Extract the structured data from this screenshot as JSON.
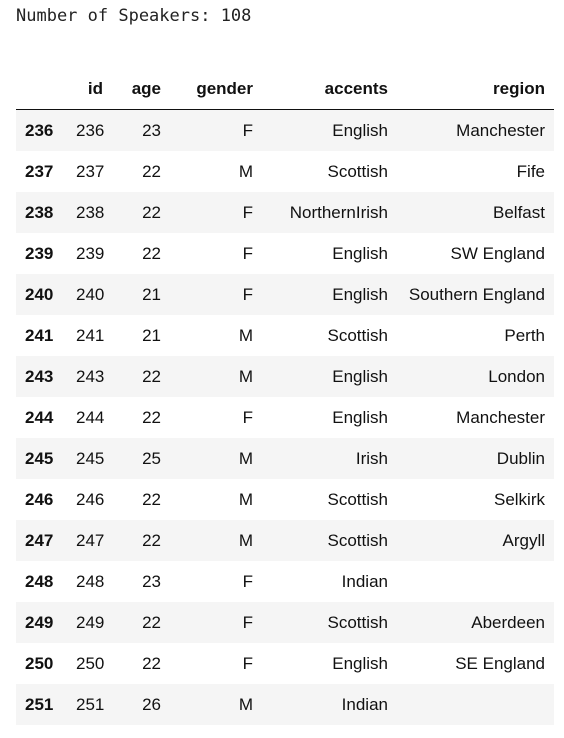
{
  "output": {
    "line": "Number of Speakers: 108"
  },
  "table": {
    "index_header": "",
    "columns": [
      "id",
      "age",
      "gender",
      "accents",
      "region"
    ],
    "rows": [
      {
        "index": "236",
        "id": "236",
        "age": "23",
        "gender": "F",
        "accents": "English",
        "region": "Manchester"
      },
      {
        "index": "237",
        "id": "237",
        "age": "22",
        "gender": "M",
        "accents": "Scottish",
        "region": "Fife"
      },
      {
        "index": "238",
        "id": "238",
        "age": "22",
        "gender": "F",
        "accents": "NorthernIrish",
        "region": "Belfast"
      },
      {
        "index": "239",
        "id": "239",
        "age": "22",
        "gender": "F",
        "accents": "English",
        "region": "SW England"
      },
      {
        "index": "240",
        "id": "240",
        "age": "21",
        "gender": "F",
        "accents": "English",
        "region": "Southern England"
      },
      {
        "index": "241",
        "id": "241",
        "age": "21",
        "gender": "M",
        "accents": "Scottish",
        "region": "Perth"
      },
      {
        "index": "243",
        "id": "243",
        "age": "22",
        "gender": "M",
        "accents": "English",
        "region": "London"
      },
      {
        "index": "244",
        "id": "244",
        "age": "22",
        "gender": "F",
        "accents": "English",
        "region": "Manchester"
      },
      {
        "index": "245",
        "id": "245",
        "age": "25",
        "gender": "M",
        "accents": "Irish",
        "region": "Dublin"
      },
      {
        "index": "246",
        "id": "246",
        "age": "22",
        "gender": "M",
        "accents": "Scottish",
        "region": "Selkirk"
      },
      {
        "index": "247",
        "id": "247",
        "age": "22",
        "gender": "M",
        "accents": "Scottish",
        "region": "Argyll"
      },
      {
        "index": "248",
        "id": "248",
        "age": "23",
        "gender": "F",
        "accents": "Indian",
        "region": ""
      },
      {
        "index": "249",
        "id": "249",
        "age": "22",
        "gender": "F",
        "accents": "Scottish",
        "region": "Aberdeen"
      },
      {
        "index": "250",
        "id": "250",
        "age": "22",
        "gender": "F",
        "accents": "English",
        "region": "SE England"
      },
      {
        "index": "251",
        "id": "251",
        "age": "26",
        "gender": "M",
        "accents": "Indian",
        "region": ""
      }
    ]
  }
}
